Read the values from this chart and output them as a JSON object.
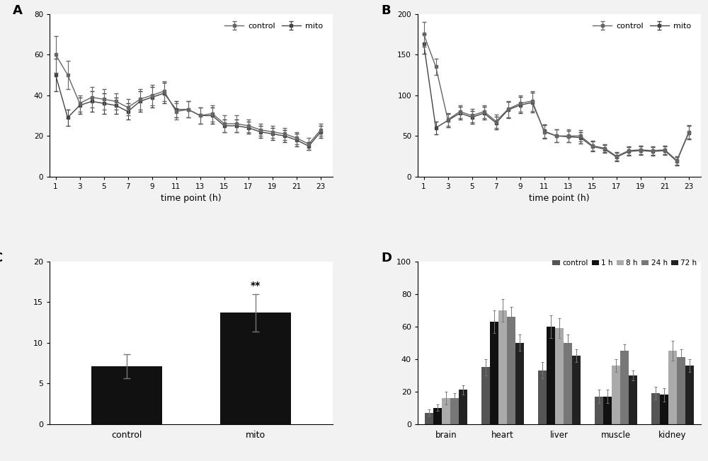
{
  "panel_A": {
    "time_points": [
      1,
      2,
      3,
      4,
      5,
      6,
      7,
      8,
      9,
      10,
      11,
      12,
      13,
      14,
      15,
      16,
      17,
      18,
      19,
      20,
      21,
      22,
      23
    ],
    "control_mean": [
      60,
      50,
      36,
      39,
      38,
      37,
      34,
      38,
      40,
      42,
      32,
      33,
      30,
      31,
      26,
      26,
      25,
      23,
      22,
      21,
      19,
      16,
      23
    ],
    "control_err": [
      9,
      7,
      4,
      5,
      5,
      4,
      4,
      5,
      5,
      5,
      4,
      4,
      4,
      4,
      4,
      4,
      3,
      3,
      3,
      3,
      3,
      3,
      3
    ],
    "mito_mean": [
      50,
      29,
      35,
      37,
      36,
      35,
      32,
      37,
      39,
      41,
      33,
      33,
      30,
      30,
      25,
      25,
      24,
      22,
      21,
      20,
      18,
      15,
      22
    ],
    "mito_err": [
      8,
      4,
      4,
      5,
      5,
      4,
      4,
      5,
      5,
      5,
      4,
      4,
      4,
      4,
      3,
      3,
      3,
      3,
      3,
      3,
      3,
      2,
      3
    ],
    "ylim": [
      0,
      80
    ],
    "yticks": [
      0,
      20,
      40,
      60,
      80
    ],
    "xlabel": "time point (h)",
    "xticks": [
      1,
      3,
      5,
      7,
      9,
      11,
      13,
      15,
      17,
      19,
      21,
      23
    ],
    "label": "A"
  },
  "panel_B": {
    "time_points": [
      1,
      2,
      3,
      4,
      5,
      6,
      7,
      8,
      9,
      10,
      11,
      12,
      13,
      14,
      15,
      16,
      17,
      18,
      19,
      20,
      21,
      22,
      23
    ],
    "control_mean": [
      175,
      135,
      70,
      80,
      75,
      80,
      68,
      83,
      90,
      93,
      55,
      50,
      50,
      50,
      38,
      35,
      25,
      32,
      33,
      32,
      33,
      20,
      55
    ],
    "control_err": [
      15,
      10,
      8,
      8,
      8,
      8,
      8,
      10,
      10,
      12,
      8,
      8,
      8,
      7,
      6,
      5,
      5,
      5,
      5,
      5,
      5,
      5,
      8
    ],
    "mito_mean": [
      163,
      60,
      69,
      78,
      73,
      78,
      66,
      82,
      88,
      91,
      56,
      50,
      49,
      48,
      37,
      34,
      24,
      31,
      32,
      31,
      32,
      19,
      54
    ],
    "mito_err": [
      12,
      8,
      8,
      8,
      8,
      8,
      8,
      10,
      10,
      12,
      8,
      8,
      7,
      7,
      6,
      5,
      5,
      5,
      5,
      5,
      5,
      5,
      8
    ],
    "ylim": [
      0,
      200
    ],
    "yticks": [
      0,
      50,
      100,
      150,
      200
    ],
    "xlabel": "time point (h)",
    "xticks": [
      1,
      3,
      5,
      7,
      9,
      11,
      13,
      15,
      17,
      19,
      21,
      23
    ],
    "label": "B"
  },
  "panel_C": {
    "categories": [
      "control",
      "mito"
    ],
    "means": [
      7.1,
      13.7
    ],
    "errors": [
      1.5,
      2.3
    ],
    "ylim": [
      0,
      20
    ],
    "yticks": [
      0,
      5,
      10,
      15,
      20
    ],
    "bar_color": "#111111",
    "annotation": "**",
    "annotation_idx": 1,
    "label": "C"
  },
  "panel_D": {
    "organs": [
      "brain",
      "heart",
      "liver",
      "muscle",
      "kidney"
    ],
    "groups": [
      "control",
      "1 h",
      "8 h",
      "24 h",
      "72 h"
    ],
    "group_colors": [
      "#555555",
      "#111111",
      "#aaaaaa",
      "#777777",
      "#222222"
    ],
    "hatch_patterns": [
      "",
      "",
      "...",
      "",
      ""
    ],
    "values": [
      [
        7,
        35,
        33,
        17,
        19
      ],
      [
        10,
        63,
        60,
        17,
        18
      ],
      [
        16,
        70,
        59,
        36,
        45
      ],
      [
        16,
        66,
        50,
        45,
        41
      ],
      [
        21,
        50,
        42,
        30,
        36
      ]
    ],
    "errors": [
      [
        2,
        5,
        5,
        4,
        4
      ],
      [
        2,
        7,
        7,
        4,
        4
      ],
      [
        4,
        7,
        6,
        4,
        6
      ],
      [
        3,
        6,
        5,
        4,
        5
      ],
      [
        3,
        5,
        4,
        3,
        4
      ]
    ],
    "ylim": [
      0,
      100
    ],
    "yticks": [
      0,
      20,
      40,
      60,
      80,
      100
    ],
    "label": "D"
  },
  "line_color_control": "#666666",
  "line_color_mito": "#444444",
  "marker_style": "s",
  "marker_size": 3.5,
  "bg_color": "#e8e8e8",
  "panel_bg": "#f2f2f2"
}
